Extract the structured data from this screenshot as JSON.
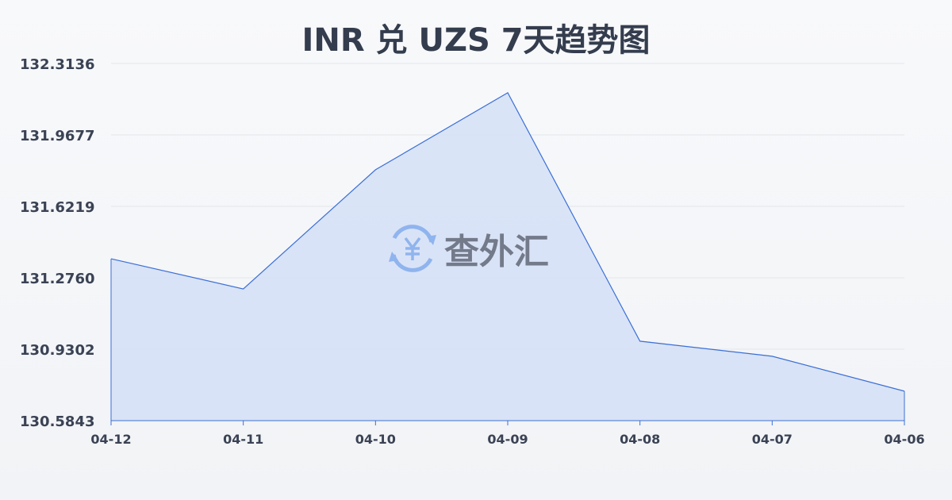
{
  "chart_data": {
    "type": "area",
    "title": "INR 兑 UZS 7天趋势图",
    "categories": [
      "04-12",
      "04-11",
      "04-10",
      "04-09",
      "04-08",
      "04-07",
      "04-06"
    ],
    "values": [
      131.368,
      131.222,
      131.799,
      132.172,
      130.969,
      130.896,
      130.727
    ],
    "yticks": [
      "132.3136",
      "131.9677",
      "131.6219",
      "131.2760",
      "130.9302",
      "130.5843"
    ],
    "ylim": [
      130.5843,
      132.3136
    ],
    "grid": true,
    "line_color": "#3b6fd6",
    "fill_color": "#d6e1f6"
  },
  "watermark": {
    "text": "查外汇",
    "icon": "yen-exchange-icon"
  }
}
